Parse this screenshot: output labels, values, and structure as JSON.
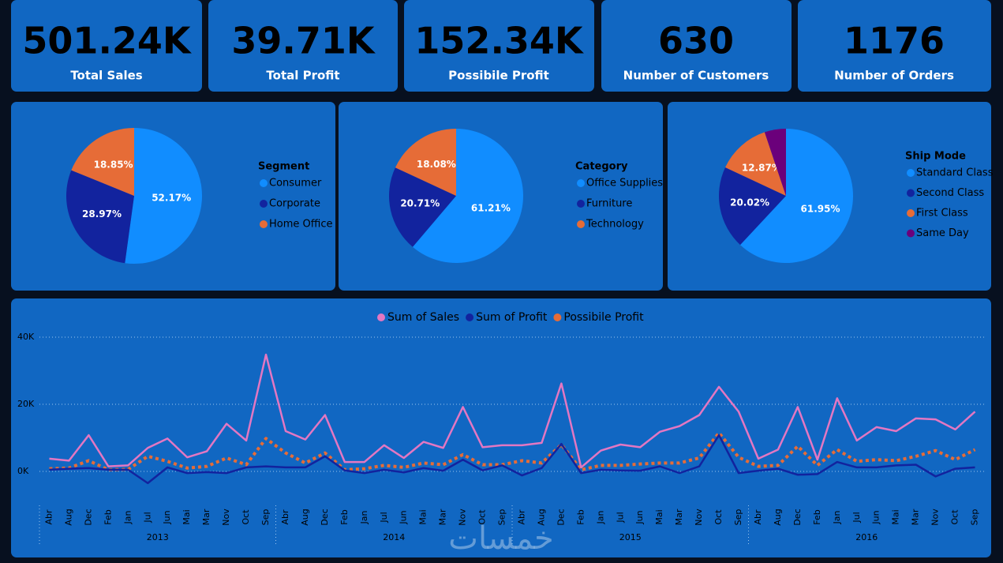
{
  "kpis": [
    {
      "value": "501.24K",
      "label": "Total Sales"
    },
    {
      "value": "39.71K",
      "label": "Total Profit"
    },
    {
      "value": "152.34K",
      "label": "Possibile Profit"
    },
    {
      "value": "630",
      "label": "Number of Customers"
    },
    {
      "value": "1176",
      "label": "Number of Orders"
    }
  ],
  "watermark": "خمسات",
  "chart_data": [
    {
      "type": "pie",
      "legend_title": "Segment",
      "categories": [
        "Consumer",
        "Corporate",
        "Home Office"
      ],
      "values": [
        52.17,
        28.97,
        18.85
      ],
      "value_labels": [
        "52.17%",
        "28.97%",
        "18.85%"
      ],
      "colors": [
        "#118dff",
        "#12239e",
        "#e66c37"
      ]
    },
    {
      "type": "pie",
      "legend_title": "Category",
      "categories": [
        "Office Supplies",
        "Furniture",
        "Technology"
      ],
      "values": [
        61.21,
        20.71,
        18.08
      ],
      "value_labels": [
        "61.21%",
        "20.71%",
        "18.08%"
      ],
      "colors": [
        "#118dff",
        "#12239e",
        "#e66c37"
      ]
    },
    {
      "type": "pie",
      "legend_title": "Ship Mode",
      "categories": [
        "Standard Class",
        "Second Class",
        "First Class",
        "Same Day"
      ],
      "values": [
        61.95,
        20.02,
        12.87,
        5.16
      ],
      "value_labels": [
        "61.95%",
        "20.02%",
        "12.87%",
        null
      ],
      "colors": [
        "#118dff",
        "#12239e",
        "#e66c37",
        "#6b007b"
      ]
    },
    {
      "type": "line",
      "years": [
        "2013",
        "2014",
        "2015",
        "2016"
      ],
      "categories": [
        "Abr",
        "Aug",
        "Dec",
        "Feb",
        "Jan",
        "Jul",
        "Jun",
        "Mai",
        "Mar",
        "Nov",
        "Oct",
        "Sep",
        "Abr",
        "Aug",
        "Dec",
        "Feb",
        "Jan",
        "Jul",
        "Jun",
        "Mai",
        "Mar",
        "Nov",
        "Oct",
        "Sep",
        "Abr",
        "Aug",
        "Dec",
        "Feb",
        "Jan",
        "Jul",
        "Jun",
        "Mai",
        "Mar",
        "Nov",
        "Oct",
        "Sep",
        "Abr",
        "Aug",
        "Dec",
        "Feb",
        "Jan",
        "Jul",
        "Jun",
        "Mai",
        "Mar",
        "Nov",
        "Oct",
        "Sep"
      ],
      "ylim": [
        -4000,
        42000
      ],
      "yticks": [
        {
          "value": 0,
          "label": "0K"
        },
        {
          "value": 20000,
          "label": "20K"
        },
        {
          "value": 40000,
          "label": "40K"
        }
      ],
      "grid": true,
      "series": [
        {
          "name": "Sum of Sales",
          "color": "#e377c2",
          "dashed": false,
          "values": [
            3800,
            3200,
            10800,
            1500,
            1800,
            7000,
            9800,
            4200,
            6000,
            14200,
            9200,
            34800,
            12000,
            9500,
            16800,
            2800,
            2800,
            7800,
            4000,
            8800,
            7000,
            19200,
            7200,
            7800,
            7800,
            8500,
            26200,
            1200,
            6200,
            8000,
            7200,
            11800,
            13500,
            16800,
            25200,
            17800,
            3800,
            6500,
            19200,
            3500,
            21800,
            9200,
            13200,
            12000,
            15800,
            15500,
            12500,
            17800
          ]
        },
        {
          "name": "Sum of Profit",
          "color": "#12239e",
          "dashed": false,
          "values": [
            500,
            800,
            1000,
            500,
            500,
            -3500,
            1200,
            -500,
            -200,
            -500,
            1200,
            1500,
            1200,
            1200,
            4500,
            300,
            -500,
            500,
            -300,
            1000,
            200,
            3500,
            300,
            1800,
            -1200,
            1000,
            8200,
            -500,
            500,
            300,
            200,
            1500,
            -500,
            1500,
            10800,
            -500,
            200,
            800,
            -1000,
            -800,
            2800,
            1200,
            1200,
            1800,
            2000,
            -1500,
            800,
            1200
          ]
        },
        {
          "name": "Possibile Profit",
          "color": "#e66c37",
          "dashed": true,
          "values": [
            800,
            1000,
            3200,
            500,
            600,
            4500,
            3000,
            1000,
            1500,
            4000,
            2000,
            9800,
            5500,
            2500,
            5500,
            500,
            800,
            1800,
            1200,
            2500,
            2000,
            5000,
            2000,
            2000,
            3200,
            2500,
            8000,
            500,
            1800,
            1800,
            2200,
            2500,
            2500,
            4000,
            11500,
            4200,
            1500,
            1800,
            7500,
            1800,
            6500,
            3000,
            3500,
            3200,
            4500,
            6200,
            3500,
            6500
          ]
        }
      ]
    }
  ]
}
